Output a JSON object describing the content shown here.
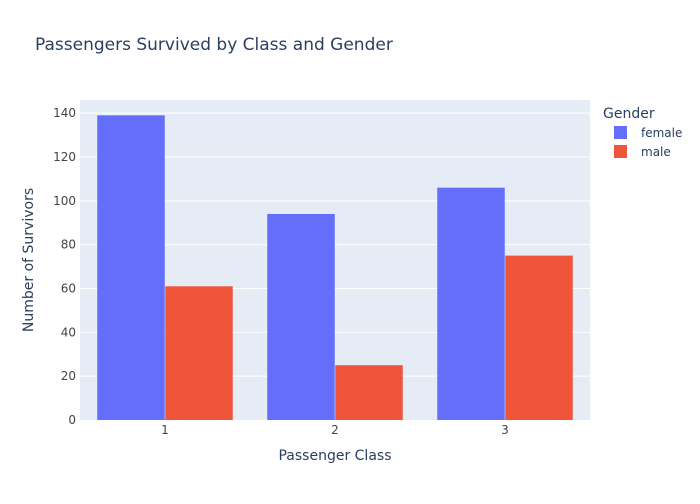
{
  "chart_data": {
    "type": "bar",
    "title": "Passengers Survived by Class and Gender",
    "xlabel": "Passenger Class",
    "ylabel": "Number of Survivors",
    "categories": [
      "1",
      "2",
      "3"
    ],
    "series": [
      {
        "name": "female",
        "values": [
          139,
          94,
          106
        ],
        "color": "#636efa"
      },
      {
        "name": "male",
        "values": [
          61,
          25,
          75
        ],
        "color": "#ef553b"
      }
    ],
    "ylim": [
      0,
      146
    ],
    "yticks": [
      0,
      20,
      40,
      60,
      80,
      100,
      120,
      140
    ],
    "legend": {
      "title": "Gender",
      "placement": "right"
    },
    "grid": true,
    "colors": {
      "plot_background": "#e5ecf6",
      "gridline": "#ffffff",
      "text": "#2a3f5f"
    }
  }
}
